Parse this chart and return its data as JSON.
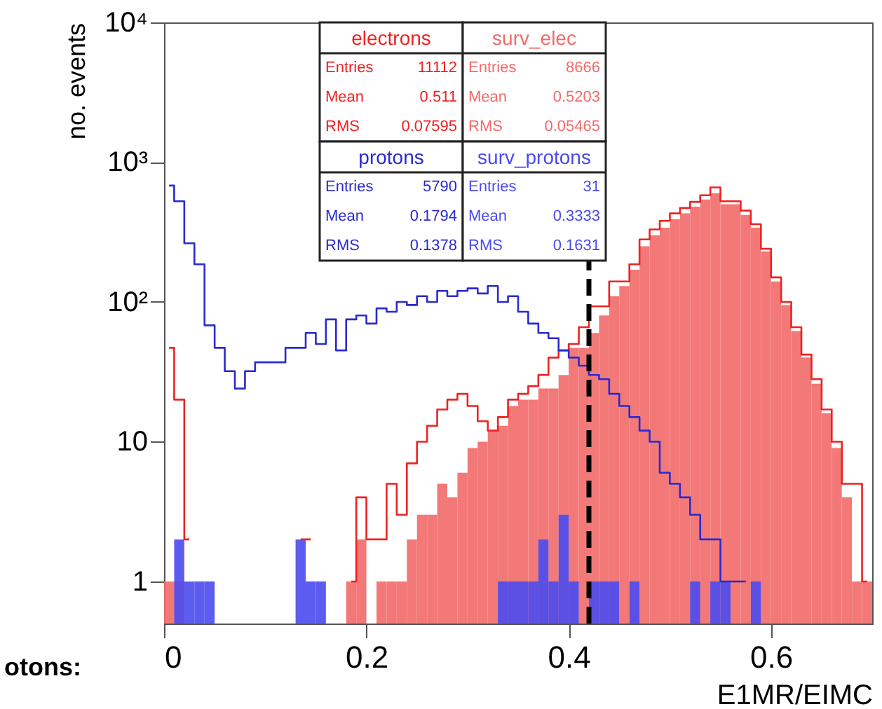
{
  "chart_data": {
    "type": "histogram",
    "xlabel": "E1MR/EIMC",
    "ylabel": "no. events",
    "log": "y",
    "legend": "top",
    "bins": [
      0,
      0.01,
      0.02,
      0.03,
      0.04,
      0.05,
      0.06,
      0.07,
      0.08,
      0.09,
      0.1,
      0.11,
      0.12,
      0.13,
      0.14,
      0.15,
      0.16,
      0.17,
      0.18,
      0.19,
      0.2,
      0.21,
      0.22,
      0.23,
      0.24,
      0.25,
      0.26,
      0.27,
      0.28,
      0.29,
      0.3,
      0.31,
      0.32,
      0.33,
      0.34,
      0.35,
      0.36,
      0.37,
      0.38,
      0.39,
      0.4,
      0.41,
      0.42,
      0.43,
      0.44,
      0.45,
      0.46,
      0.47,
      0.48,
      0.49,
      0.5,
      0.51,
      0.52,
      0.53,
      0.54,
      0.55,
      0.56,
      0.57,
      0.58,
      0.59,
      0.6,
      0.61,
      0.62,
      0.63,
      0.64,
      0.65,
      0.66,
      0.67,
      0.68,
      0.69,
      0.7
    ],
    "xlim": [
      0,
      0.7
    ],
    "xticks": [
      0,
      0.2,
      0.4,
      0.6
    ],
    "ylim": [
      0.5,
      10000
    ],
    "yticks": [
      1,
      10,
      {
        "value": 100,
        "label": "10²"
      },
      {
        "value": 1000,
        "label": "10³"
      },
      {
        "value": 10000,
        "label": "10⁴"
      }
    ],
    "series": [
      {
        "name": "electrons",
        "type": "step",
        "color": "#ee2222",
        "x": [
          0.005,
          0.015,
          0.025,
          0.035,
          0.045,
          0.055,
          0.065,
          0.075,
          0.085,
          0.095,
          0.105,
          0.115,
          0.125,
          0.135,
          0.145,
          0.155,
          0.165,
          0.175,
          0.185,
          0.195,
          0.205,
          0.215,
          0.225,
          0.235,
          0.245,
          0.255,
          0.265,
          0.275,
          0.285,
          0.295,
          0.305,
          0.315,
          0.325,
          0.335,
          0.345,
          0.355,
          0.365,
          0.375,
          0.385,
          0.395,
          0.405,
          0.415,
          0.425,
          0.435,
          0.445,
          0.455,
          0.465,
          0.475,
          0.485,
          0.495,
          0.505,
          0.515,
          0.525,
          0.535,
          0.545,
          0.555,
          0.565,
          0.575,
          0.585,
          0.595,
          0.605,
          0.615,
          0.625,
          0.635,
          0.645,
          0.655,
          0.665,
          0.675,
          0.685,
          0.695
        ],
        "values": [
          47,
          20,
          2,
          null,
          null,
          null,
          null,
          null,
          null,
          null,
          null,
          null,
          null,
          2,
          2,
          null,
          null,
          null,
          1,
          4,
          2,
          2,
          5,
          3,
          7,
          10,
          13,
          17,
          20,
          22,
          18,
          14,
          12,
          15,
          20,
          22,
          25,
          30,
          40,
          45,
          50,
          66,
          93,
          93,
          140,
          140,
          186,
          280,
          330,
          380,
          430,
          470,
          520,
          580,
          660,
          525,
          525,
          450,
          360,
          240,
          150,
          100,
          66,
          42,
          28,
          17,
          10,
          5,
          5,
          1
        ]
      },
      {
        "name": "surv_elec",
        "color": "#f26a6a",
        "values": [
          1,
          1,
          null,
          null,
          null,
          null,
          null,
          null,
          null,
          null,
          null,
          null,
          null,
          null,
          null,
          null,
          null,
          null,
          1,
          2,
          null,
          1,
          1,
          1,
          2,
          3,
          3,
          5,
          4,
          6,
          9,
          10,
          12,
          13,
          18,
          20,
          20,
          24,
          24,
          30,
          47,
          47,
          60,
          80,
          110,
          130,
          170,
          250,
          300,
          340,
          390,
          430,
          480,
          540,
          600,
          500,
          500,
          420,
          340,
          230,
          140,
          95,
          62,
          40,
          26,
          16,
          9,
          4,
          1,
          1
        ]
      },
      {
        "name": "protons",
        "type": "step",
        "color": "#2a2ad0",
        "x": [
          0.005,
          0.015,
          0.025,
          0.035,
          0.045,
          0.055,
          0.065,
          0.075,
          0.085,
          0.095,
          0.105,
          0.115,
          0.125,
          0.135,
          0.145,
          0.155,
          0.165,
          0.175,
          0.185,
          0.195,
          0.205,
          0.215,
          0.225,
          0.235,
          0.245,
          0.255,
          0.265,
          0.275,
          0.285,
          0.295,
          0.305,
          0.315,
          0.325,
          0.335,
          0.345,
          0.355,
          0.365,
          0.375,
          0.385,
          0.395,
          0.405,
          0.415,
          0.425,
          0.435,
          0.445,
          0.455,
          0.465,
          0.475,
          0.485,
          0.495,
          0.505,
          0.515,
          0.525,
          0.535,
          0.545,
          0.555,
          0.565,
          0.575
        ],
        "values": [
          680,
          525,
          263,
          186,
          68,
          47,
          32,
          24,
          32,
          37,
          37,
          37,
          47,
          47,
          60,
          50,
          75,
          45,
          75,
          80,
          70,
          90,
          85,
          100,
          95,
          110,
          100,
          120,
          110,
          120,
          125,
          115,
          130,
          100,
          110,
          85,
          70,
          60,
          55,
          45,
          40,
          35,
          30,
          28,
          22,
          18,
          15,
          12,
          10,
          6,
          5,
          4,
          3,
          2,
          2,
          1,
          1,
          1
        ]
      },
      {
        "name": "surv_protons",
        "color": "#4a4af0",
        "values": [
          null,
          2,
          1,
          1,
          1,
          null,
          null,
          null,
          null,
          null,
          null,
          null,
          null,
          2,
          1,
          1,
          null,
          null,
          null,
          null,
          null,
          null,
          null,
          null,
          null,
          null,
          null,
          null,
          null,
          null,
          null,
          null,
          null,
          1,
          1,
          1,
          1,
          2,
          1,
          3,
          1,
          null,
          1,
          1,
          1,
          null,
          1,
          null,
          null,
          null,
          null,
          null,
          1,
          null,
          1,
          1,
          null,
          null,
          1,
          null,
          null,
          null,
          null,
          null,
          null,
          null,
          null,
          null,
          null,
          null
        ]
      }
    ],
    "ref_lines": [
      {
        "axis": "x",
        "value": 0.42,
        "color": "#000000",
        "line_style": "dashed"
      }
    ],
    "annotations": [
      "Entries 11112",
      "Mean 0.511",
      "RMS 0.07595",
      "Entries 8666",
      "Mean 0.5203",
      "RMS 0.05465",
      "Entries 5790",
      "Mean 0.1794",
      "RMS 0.1378",
      "Entries 31",
      "Mean 0.3333",
      "RMS 0.1631",
      "otons:"
    ]
  }
}
